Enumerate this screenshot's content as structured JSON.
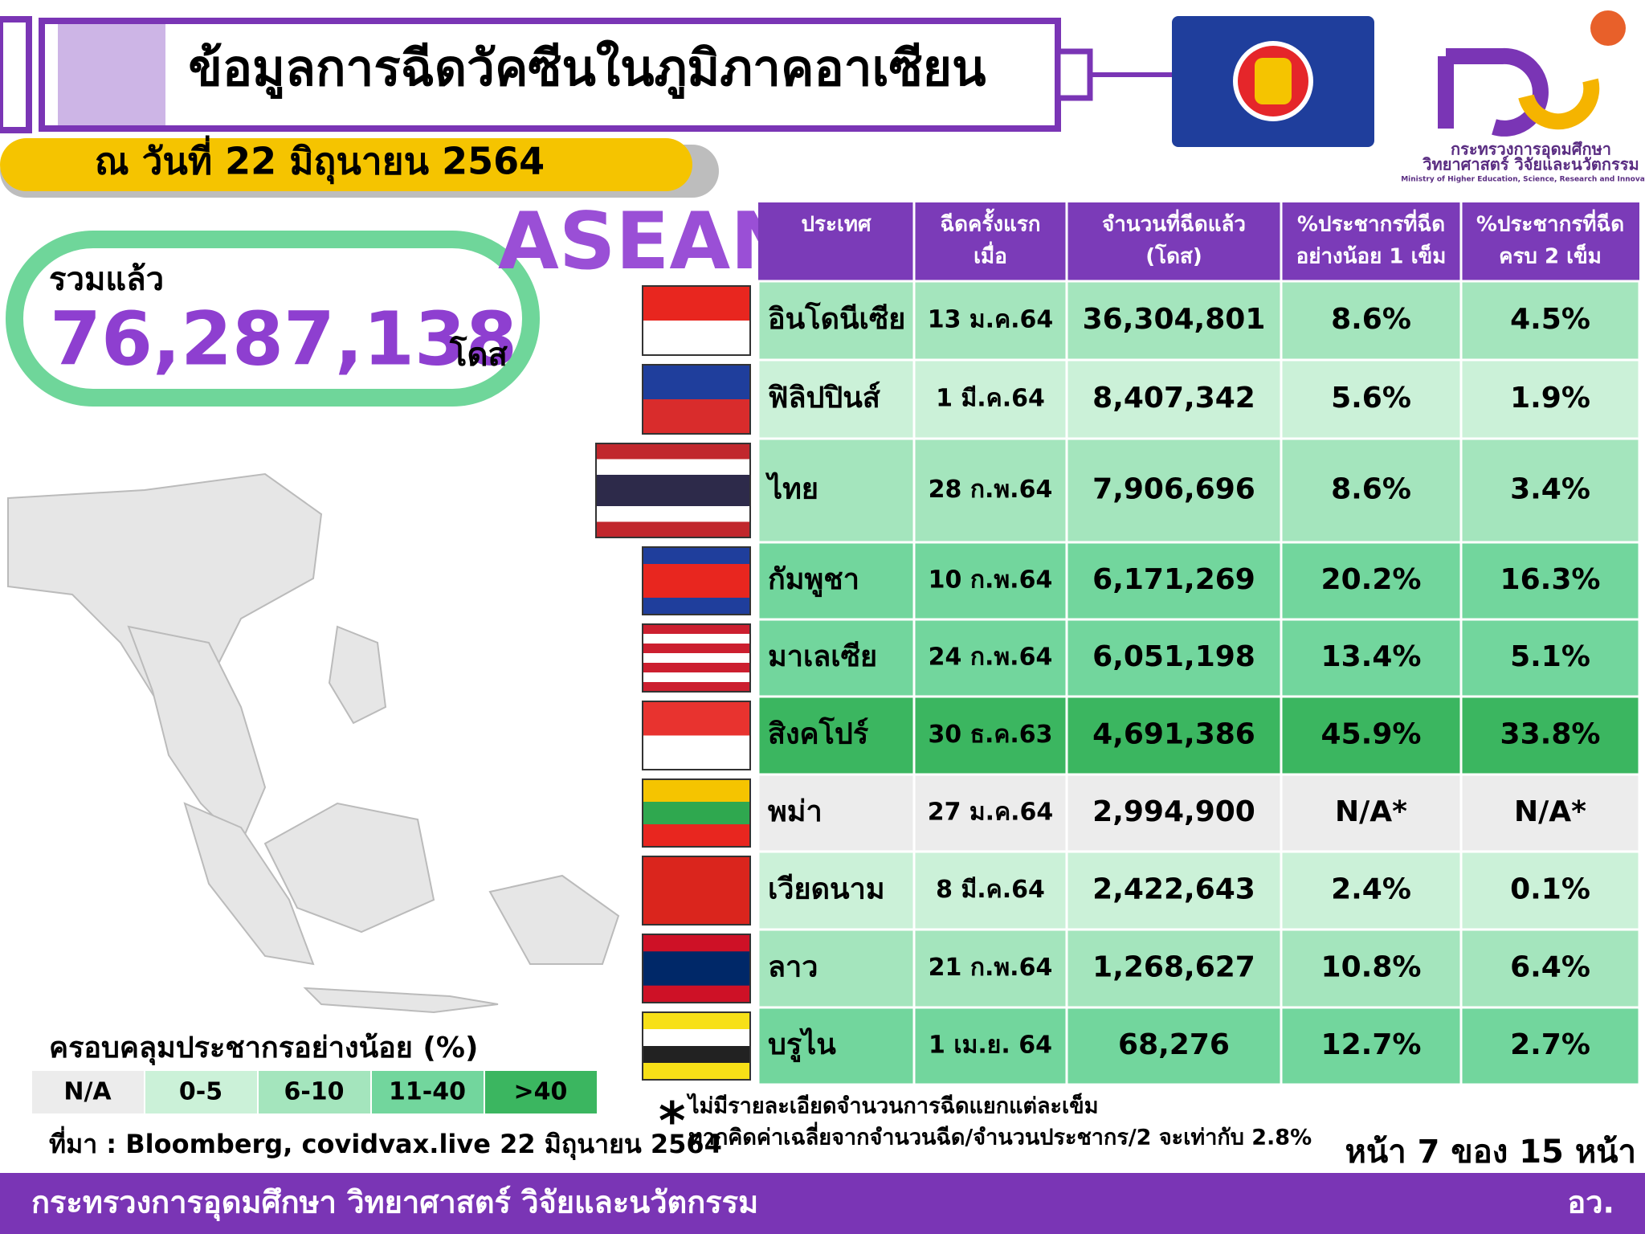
{
  "header": {
    "title": "ข้อมูลการฉีดวัคซีนในภูมิภาคอาเซียน",
    "date": "ณ วันที่ 22 มิถุนายน 2564"
  },
  "logo": {
    "lines": [
      "กระทรวงการอุดมศึกษา",
      "วิทยาศาสตร์ วิจัยและนวัตกรรม",
      "Ministry of Higher Education, Science, Research and Innovation"
    ]
  },
  "total": {
    "label": "รวมแล้ว",
    "value": "76,287,138",
    "unit": "โดส"
  },
  "region": "ASEAN",
  "table": {
    "headers": [
      [
        "ประเทศ"
      ],
      [
        "ฉีดครั้งแรก",
        "เมื่อ"
      ],
      [
        "จำนวนที่ฉีดแล้ว",
        "(โดส)"
      ],
      [
        "%ประชากรที่ฉีด",
        "อย่างน้อย 1 เข็ม"
      ],
      [
        "%ประชากรที่ฉีด",
        "ครบ 2 เข็ม"
      ]
    ],
    "rows": [
      [
        "อินโดนีเซีย",
        "13 ม.ค.64",
        "36,304,801",
        "8.6%",
        "4.5%"
      ],
      [
        "ฟิลิปปินส์",
        "1 มี.ค.64",
        "8,407,342",
        "5.6%",
        "1.9%"
      ],
      [
        "ไทย",
        "28 ก.พ.64",
        "7,906,696",
        "8.6%",
        "3.4%"
      ],
      [
        "กัมพูชา",
        "10 ก.พ.64",
        "6,171,269",
        "20.2%",
        "16.3%"
      ],
      [
        "มาเลเซีย",
        "24 ก.พ.64",
        "6,051,198",
        "13.4%",
        "5.1%"
      ],
      [
        "สิงคโปร์",
        "30 ธ.ค.63",
        "4,691,386",
        "45.9%",
        "33.8%"
      ],
      [
        "พม่า",
        "27 ม.ค.64",
        "2,994,900",
        "N/A*",
        "N/A*"
      ],
      [
        "เวียดนาม",
        "8 มี.ค.64",
        "2,422,643",
        "2.4%",
        "0.1%"
      ],
      [
        "ลาว",
        "21 ก.พ.64",
        "1,268,627",
        "10.8%",
        "6.4%"
      ],
      [
        "บรูไน",
        "1 เม.ย. 64",
        "68,276",
        "12.7%",
        "2.7%"
      ]
    ],
    "row_colors": [
      "#a4e5bd",
      "#cbf1d8",
      "#a4e5bd",
      "#72d69d",
      "#72d69d",
      "#3bb660",
      "#ececec",
      "#cbf1d8",
      "#a4e5bd",
      "#72d69d"
    ]
  },
  "legend": {
    "title": "ครอบคลุมประชากรอย่างน้อย (%)",
    "items": [
      {
        "label": "N/A",
        "color": "#ececec"
      },
      {
        "label": "0-5",
        "color": "#cbf1d8"
      },
      {
        "label": "6-10",
        "color": "#a4e5bd"
      },
      {
        "label": "11-40",
        "color": "#72d69d"
      },
      {
        "label": ">40",
        "color": "#3bb660"
      }
    ]
  },
  "source": "ที่มา : Bloomberg, covidvax.live 22 มิถุนายน 2564",
  "footnote": {
    "marker": "*",
    "lines": [
      "ไม่มีรายละเอียดจำนวนการฉีดแยกแต่ละเข็ม",
      "หากคิดค่าเฉลี่ยจากจำนวนฉีด/จำนวนประชากร/2 จะเท่ากับ 2.8%"
    ]
  },
  "page": "หน้า 7 ของ 15 หน้า",
  "footer": {
    "left": "กระทรวงการอุดมศึกษา วิทยาศาสตร์ วิจัยและนวัตกรรม",
    "right": "อว."
  }
}
